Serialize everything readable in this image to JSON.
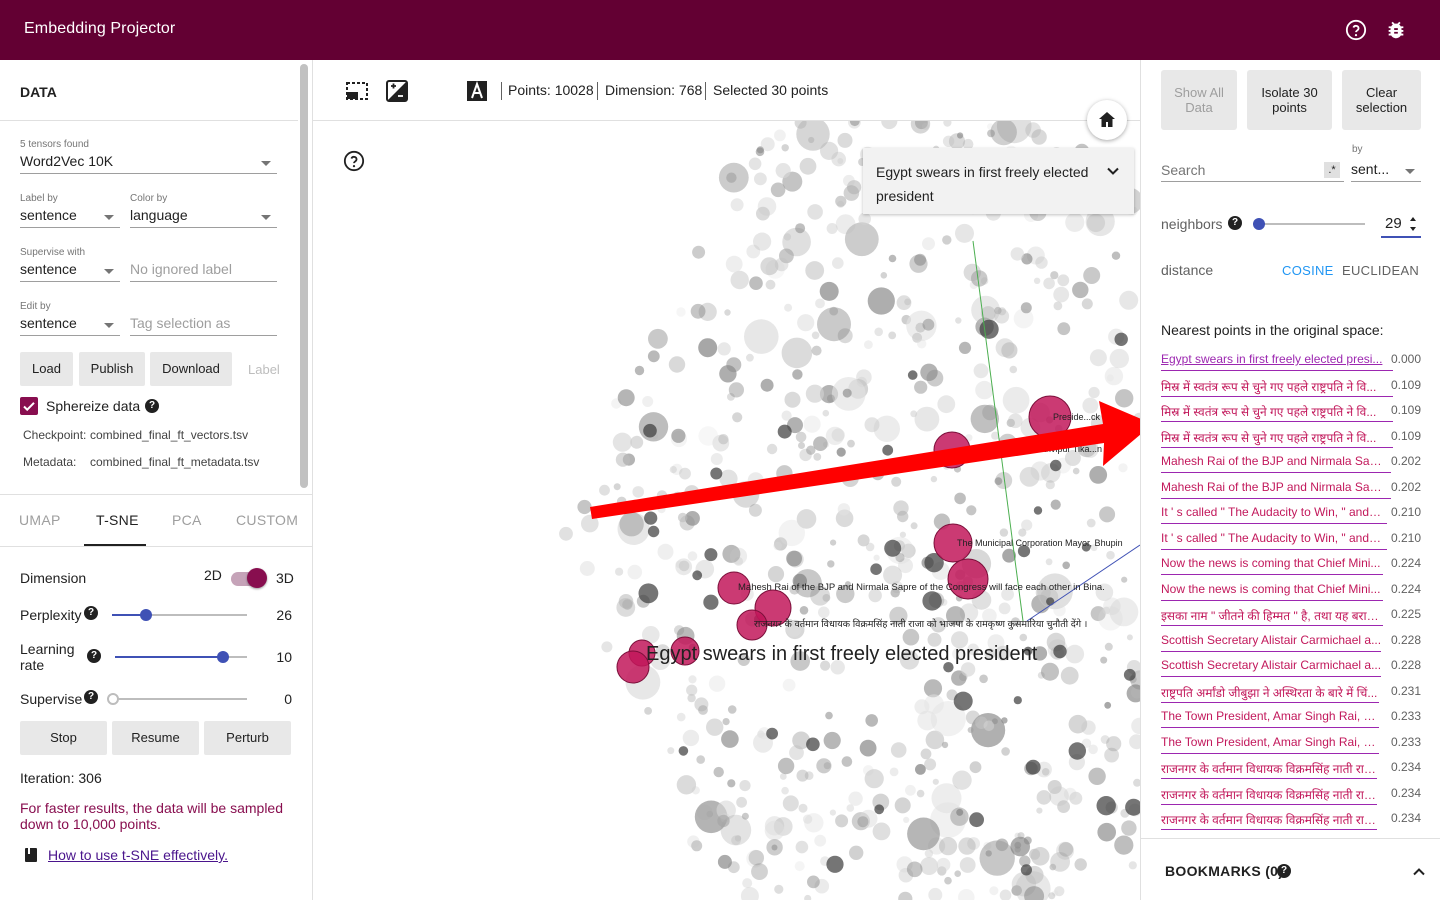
{
  "app": {
    "title": "Embedding Projector",
    "colors": {
      "topbar": "#630033",
      "accent": "#880e4f",
      "selected_point": "#c2185b",
      "link": "#4a148c",
      "cosine_active": "#2196f3",
      "arrow": "#ff0000"
    },
    "icons": [
      "help-icon",
      "bug-icon"
    ]
  },
  "data_panel": {
    "title": "DATA",
    "tensors_found": "5 tensors found",
    "tensor": "Word2Vec 10K",
    "label_by": {
      "label": "Label by",
      "value": "sentence"
    },
    "color_by": {
      "label": "Color by",
      "value": "language"
    },
    "supervise_with": {
      "label": "Supervise with",
      "value": "sentence"
    },
    "ignored_label_placeholder": "No ignored label",
    "edit_by": {
      "label": "Edit by",
      "value": "sentence"
    },
    "tag_selection_placeholder": "Tag selection as",
    "buttons": {
      "load": "Load",
      "publish": "Publish",
      "download": "Download",
      "label": "Label"
    },
    "sphereize": {
      "label": "Sphereize data",
      "checked": true
    },
    "checkpoint": {
      "label": "Checkpoint:",
      "value": "combined_final_ft_vectors.tsv"
    },
    "metadata": {
      "label": "Metadata:",
      "value": "combined_final_ft_metadata.tsv"
    }
  },
  "projection_tabs": [
    "UMAP",
    "T-SNE",
    "PCA",
    "CUSTOM"
  ],
  "active_tab": "T-SNE",
  "tsne": {
    "dimension": {
      "label": "Dimension",
      "opt_2d": "2D",
      "opt_3d": "3D",
      "is_3d": true
    },
    "perplexity": {
      "label": "Perplexity",
      "value": "26",
      "fraction": 0.25
    },
    "learning_rate": {
      "label": "Learning rate",
      "value": "10",
      "fraction": 0.82
    },
    "supervise": {
      "label": "Supervise",
      "value": "0",
      "fraction": 0.0
    },
    "buttons": {
      "stop": "Stop",
      "resume": "Resume",
      "perturb": "Perturb"
    },
    "iteration": "Iteration: 306",
    "sample_note": "For faster results, the data will be sampled down to 10,000 points.",
    "link": "How to use t-SNE effectively."
  },
  "toolbar": {
    "icons": [
      "select-rect-icon",
      "night-mode-icon",
      "contrast-icon",
      "label-icon"
    ],
    "points": "Points: 10028",
    "dimension": "Dimension: 768",
    "selected": "Selected 30 points"
  },
  "scatter": {
    "selected_card": "Egypt swears in first freely elected president",
    "main_label": "Egypt swears in first freely elected president",
    "labels": [
      "Preside...ck O",
      "...rthvipur Tika...n Co",
      "The Municipal Corporation Mayor, Bhupin",
      "Mahesh Rai of the BJP and Nirmala Sapre of the Congress will face each other in Bina.",
      "राजनगर के वर्तमान विधायक विक्रमसिंह नाती राजा को भाजपा के रामकृष्ण कुसमारिया चुनौती देंगे ।"
    ]
  },
  "inspector": {
    "buttons": {
      "show_all": "Show All Data",
      "isolate": "Isolate 30 points",
      "clear": "Clear selection"
    },
    "search_placeholder": "Search",
    "regex": ".*",
    "by_label": "by",
    "by_value": "sent...",
    "neighbors": {
      "label": "neighbors",
      "value": "29",
      "fraction": 0.0
    },
    "distance": {
      "label": "distance",
      "cosine": "COSINE",
      "euclidean": "EUCLIDEAN",
      "active": "COSINE"
    },
    "nearest_title": "Nearest points in the original space:",
    "nearest": [
      {
        "text": "Egypt swears in first freely elected presi...",
        "dist": "0.000"
      },
      {
        "text": "मिस्र में स्वतंत्र रूप से चुने गए पहले राष्ट्रपति ने वि...",
        "dist": "0.109"
      },
      {
        "text": "मिस्र में स्वतंत्र रूप से चुने गए पहले राष्ट्रपति ने वि...",
        "dist": "0.109"
      },
      {
        "text": "मिस्र में स्वतंत्र रूप से चुने गए पहले राष्ट्रपति ने वि...",
        "dist": "0.109"
      },
      {
        "text": "Mahesh Rai of the BJP and Nirmala Sap...",
        "dist": "0.202"
      },
      {
        "text": "Mahesh Rai of the BJP and Nirmala Sap...",
        "dist": "0.202"
      },
      {
        "text": "It ' s called \" The Audacity to Win, \" and it...",
        "dist": "0.210"
      },
      {
        "text": "It ' s called \" The Audacity to Win, \" and it...",
        "dist": "0.210"
      },
      {
        "text": "Now the news is coming that Chief Mini...",
        "dist": "0.224"
      },
      {
        "text": "Now the news is coming that Chief Mini...",
        "dist": "0.224"
      },
      {
        "text": "इसका नाम \" जीतने की हिम्मत \" है, तथा यह बराक ...",
        "dist": "0.225"
      },
      {
        "text": "Scottish Secretary Alistair Carmichael a...",
        "dist": "0.228"
      },
      {
        "text": "Scottish Secretary Alistair Carmichael a...",
        "dist": "0.228"
      },
      {
        "text": "राष्ट्रपति अर्मांडो जीबुझा ने अस्थिरता के बारे में चिं...",
        "dist": "0.231"
      },
      {
        "text": "The Town President, Amar Singh Rai, Vi...",
        "dist": "0.233"
      },
      {
        "text": "The Town President, Amar Singh Rai, Vi...",
        "dist": "0.233"
      },
      {
        "text": "राजनगर के वर्तमान विधायक विक्रमसिंह नाती राजा...",
        "dist": "0.234"
      },
      {
        "text": "राजनगर के वर्तमान विधायक विक्रमसिंह नाती राजा...",
        "dist": "0.234"
      },
      {
        "text": "राजनगर के वर्तमान विधायक विक्रमसिंह नाती राजा...",
        "dist": "0.234"
      }
    ],
    "bookmarks": "BOOKMARKS (0)"
  }
}
